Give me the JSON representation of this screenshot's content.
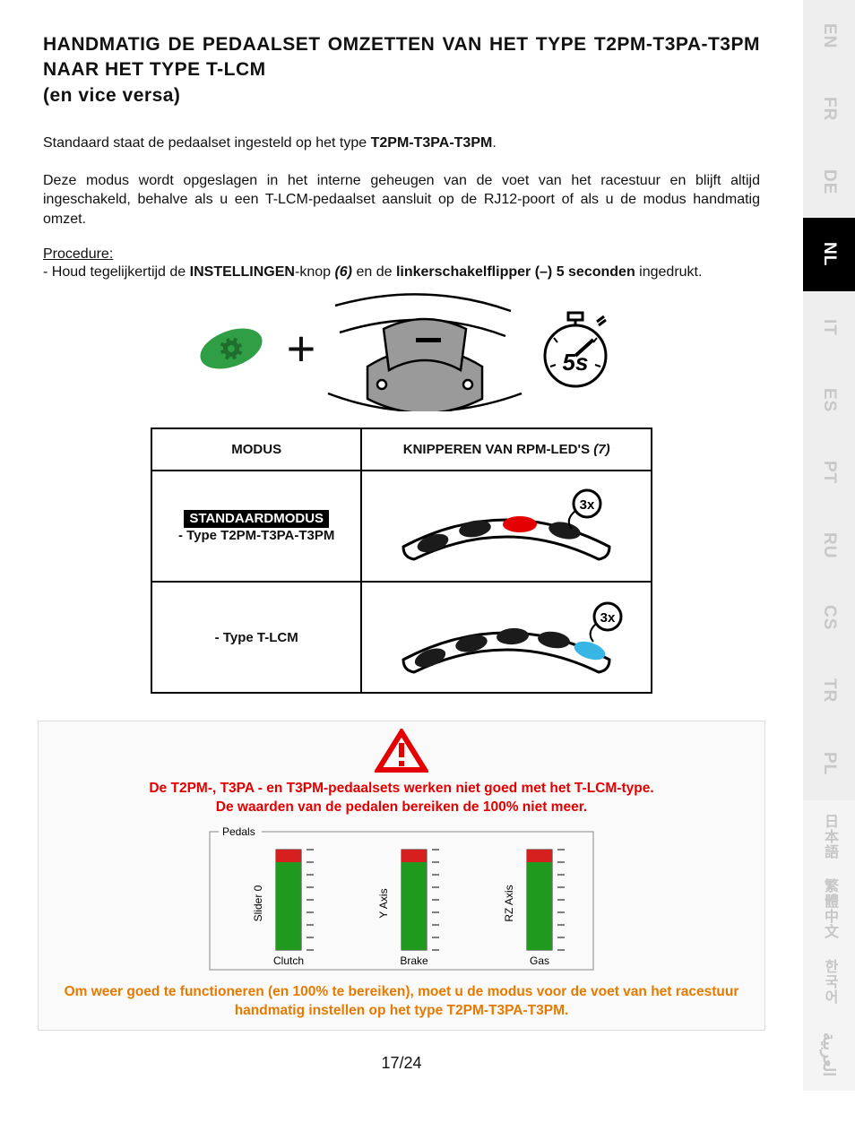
{
  "heading_line1": "HANDMATIG DE PEDAALSET OMZETTEN VAN HET TYPE T2PM-T3PA-T3PM NAAR HET TYPE T-LCM",
  "heading_sub": "(en vice versa)",
  "intro_prefix": "Standaard staat de pedaalset ingesteld op het type ",
  "intro_bold": "T2PM-T3PA-T3PM",
  "intro_suffix": ".",
  "memory_para": "Deze modus wordt opgeslagen in het interne geheugen van de voet van het racestuur en blijft altijd ingeschakeld, behalve als u een T-LCM-pedaalset aansluit op de RJ12-poort of als u de modus handmatig omzet.",
  "procedure_label": "Procedure:",
  "proc_parts": {
    "a": "- Houd tegelijkertijd de ",
    "settings": "INSTELLINGEN",
    "b": "-knop ",
    "six": "(6)",
    "c": " en de ",
    "left": "linkerschakelflipper (–) 5 seconden",
    "d": " ingedrukt."
  },
  "figure": {
    "button_color": "#2f9e44",
    "paddle_fill": "#9a9a9a",
    "paddle_stroke": "#000000",
    "timer_label": "5s",
    "timer_stroke": "#000000"
  },
  "table": {
    "head_left": "MODUS",
    "head_right": "KNIPPEREN VAN RPM-LED'S (7)",
    "row1_badge": "STANDAARDMODUS",
    "row1_type": "- Type T2PM-T3PA-T3PM",
    "row2_type": "- Type T-LCM",
    "blink_label": "3x",
    "led_off": "#1b1b1b",
    "led_row1_accent": "#e40000",
    "led_row2_accent": "#37b6e6",
    "arc_stroke": "#000000",
    "arc_fill": "#ffffff"
  },
  "warning": {
    "triangle_color": "#e40000",
    "line1": "De T2PM-, T3PA - en T3PM-pedaalsets werken niet goed met het T-LCM-type.",
    "line2": "De waarden van de pedalen bereiken de 100% niet meer.",
    "pedals": {
      "legend": "Pedals",
      "slider0": "Slider 0",
      "yaxis": "Y Axis",
      "rzaxis": "RZ Axis",
      "clutch": "Clutch",
      "brake": "Brake",
      "gas": "Gas",
      "bar_green": "#1f9a1f",
      "bar_red": "#d62020",
      "tick": "#000000"
    },
    "note": "Om weer goed te functioneren (en 100% te bereiken), moet u de modus voor de voet van het racestuur handmatig instellen op het type T2PM-T3PA-T3PM."
  },
  "page_number": "17/24",
  "lang_tabs": [
    {
      "code": "EN",
      "state": "inactive"
    },
    {
      "code": "FR",
      "state": "inactive"
    },
    {
      "code": "DE",
      "state": "inactive"
    },
    {
      "code": "NL",
      "state": "active"
    },
    {
      "code": "IT",
      "state": "inactive"
    },
    {
      "code": "ES",
      "state": "inactive"
    },
    {
      "code": "PT",
      "state": "inactive"
    },
    {
      "code": "RU",
      "state": "inactive"
    },
    {
      "code": "CS",
      "state": "inactive"
    },
    {
      "code": "TR",
      "state": "inactive"
    },
    {
      "code": "PL",
      "state": "inactive"
    },
    {
      "code": "日本語",
      "state": "faint",
      "cls": "cjk"
    },
    {
      "code": "繁體中文",
      "state": "faint",
      "cls": "cjk"
    },
    {
      "code": "한국어",
      "state": "faint",
      "cls": "cjk"
    },
    {
      "code": "العربية",
      "state": "faint",
      "cls": "arabic"
    }
  ]
}
